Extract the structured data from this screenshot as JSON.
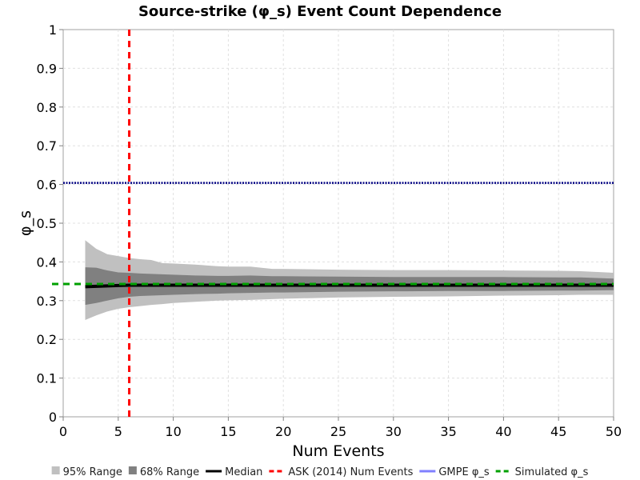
{
  "chart_data": {
    "type": "area",
    "title": "Source-strike (φ_s) Event Count Dependence",
    "xlabel": "Num Events",
    "ylabel": "φ_s",
    "xlim": [
      0,
      50
    ],
    "ylim": [
      0,
      1
    ],
    "x_ticks": [
      0,
      5,
      10,
      15,
      20,
      25,
      30,
      35,
      40,
      45,
      50
    ],
    "y_ticks": [
      0,
      0.1,
      0.2,
      0.3,
      0.4,
      0.5,
      0.6,
      0.7,
      0.8,
      0.9,
      1
    ],
    "x_tick_labels": [
      "0",
      "5",
      "10",
      "15",
      "20",
      "25",
      "30",
      "35",
      "40",
      "45",
      "50"
    ],
    "y_tick_labels": [
      "0",
      "0.1",
      "0.2",
      "0.3",
      "0.4",
      "0.5",
      "0.6",
      "0.7",
      "0.8",
      "0.9",
      "1"
    ],
    "grid": true,
    "legend_position": "bottom",
    "x": [
      2,
      3,
      4,
      5,
      6,
      7,
      8,
      9,
      10,
      12,
      14,
      15,
      17,
      19,
      20,
      25,
      30,
      35,
      40,
      45,
      47,
      50
    ],
    "series": [
      {
        "name": "95% Range",
        "kind": "band",
        "color": "#c0c0c0",
        "lower": [
          0.25,
          0.262,
          0.272,
          0.279,
          0.283,
          0.286,
          0.289,
          0.291,
          0.294,
          0.297,
          0.3,
          0.301,
          0.302,
          0.304,
          0.305,
          0.308,
          0.31,
          0.311,
          0.313,
          0.314,
          0.315,
          0.315
        ],
        "upper": [
          0.456,
          0.434,
          0.42,
          0.415,
          0.41,
          0.407,
          0.405,
          0.397,
          0.396,
          0.393,
          0.389,
          0.388,
          0.388,
          0.382,
          0.382,
          0.38,
          0.379,
          0.379,
          0.378,
          0.377,
          0.376,
          0.372
        ]
      },
      {
        "name": "68% Range",
        "kind": "band",
        "color": "#808080",
        "lower": [
          0.289,
          0.294,
          0.3,
          0.306,
          0.31,
          0.312,
          0.313,
          0.314,
          0.315,
          0.317,
          0.318,
          0.319,
          0.32,
          0.321,
          0.321,
          0.323,
          0.324,
          0.325,
          0.325,
          0.326,
          0.326,
          0.327
        ],
        "upper": [
          0.386,
          0.385,
          0.378,
          0.373,
          0.372,
          0.37,
          0.369,
          0.368,
          0.367,
          0.365,
          0.364,
          0.364,
          0.365,
          0.363,
          0.363,
          0.362,
          0.361,
          0.361,
          0.361,
          0.36,
          0.36,
          0.357
        ]
      },
      {
        "name": "Median",
        "kind": "line",
        "color": "#000000",
        "values": [
          0.336,
          0.337,
          0.338,
          0.339,
          0.34,
          0.34,
          0.34,
          0.34,
          0.34,
          0.34,
          0.34,
          0.34,
          0.34,
          0.34,
          0.34,
          0.34,
          0.34,
          0.34,
          0.34,
          0.34,
          0.34,
          0.34
        ]
      }
    ],
    "reference_lines": [
      {
        "name": "ASK (2014) Num Events",
        "orientation": "vertical",
        "value": 6,
        "color": "#ff0000",
        "style": "dashed"
      },
      {
        "name": "GMPE φ_s",
        "orientation": "horizontal",
        "value": 0.604,
        "color": "#000080",
        "style": "dotted"
      },
      {
        "name": "Simulated φ_s",
        "orientation": "horizontal",
        "value": 0.343,
        "color": "#00a000",
        "style": "dashed"
      }
    ],
    "legend": [
      {
        "label": "95% Range",
        "swatch": "square",
        "color": "#c0c0c0"
      },
      {
        "label": "68% Range",
        "swatch": "square",
        "color": "#808080"
      },
      {
        "label": "Median",
        "swatch": "line",
        "color": "#000000"
      },
      {
        "label": "ASK (2014) Num Events",
        "swatch": "dashed",
        "color": "#ff0000"
      },
      {
        "label": "GMPE φ_s",
        "swatch": "line",
        "color": "#8080ff"
      },
      {
        "label": "Simulated φ_s",
        "swatch": "dashed",
        "color": "#00a000"
      }
    ]
  }
}
